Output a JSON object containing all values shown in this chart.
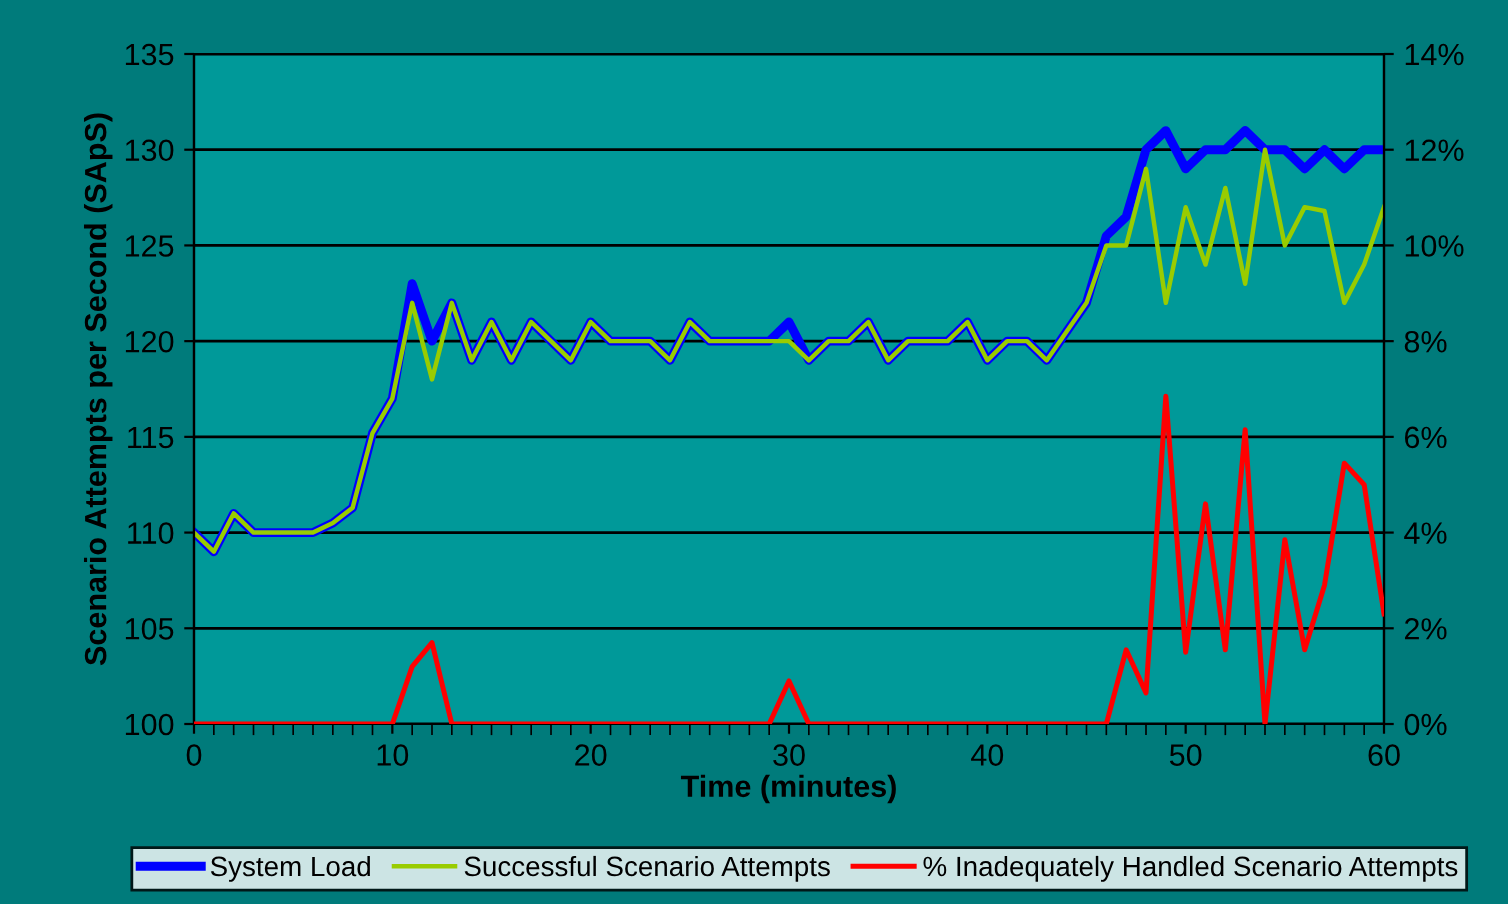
{
  "chart_data": {
    "type": "line",
    "xlabel": "Time (minutes)",
    "ylabel": "Scenario Attempts per Second (SApS)",
    "x": [
      0,
      1,
      2,
      3,
      4,
      5,
      6,
      7,
      8,
      9,
      10,
      11,
      12,
      13,
      14,
      15,
      16,
      17,
      18,
      19,
      20,
      21,
      22,
      23,
      24,
      25,
      26,
      27,
      28,
      29,
      30,
      31,
      32,
      33,
      34,
      35,
      36,
      37,
      38,
      39,
      40,
      41,
      42,
      43,
      44,
      45,
      46,
      47,
      48,
      49,
      50,
      51,
      52,
      53,
      54,
      55,
      56,
      57,
      58,
      59,
      60
    ],
    "series": [
      {
        "name": "System Load",
        "color": "#0000ff",
        "values": [
          110,
          109,
          111,
          110,
          110,
          110,
          110,
          110.5,
          111.3,
          115.2,
          117,
          123,
          120,
          122,
          119,
          121,
          119,
          121,
          120,
          119,
          121,
          120,
          120,
          120,
          119,
          121,
          120,
          120,
          120,
          120,
          121,
          119,
          120,
          120,
          121,
          119,
          120,
          120,
          120,
          121,
          119,
          120,
          120,
          119,
          120.5,
          122,
          125.5,
          126.5,
          130,
          131,
          129,
          130,
          130,
          131,
          130,
          130,
          129,
          130,
          129,
          130,
          130
        ]
      },
      {
        "name": "Successful Scenario Attempts",
        "color": "#99cc00",
        "values": [
          110,
          109,
          111,
          110,
          110,
          110,
          110,
          110.5,
          111.3,
          115.2,
          117,
          122,
          118,
          122,
          119,
          121,
          119,
          121,
          120,
          119,
          121,
          120,
          120,
          120,
          119,
          121,
          120,
          120,
          120,
          120,
          120,
          119,
          120,
          120,
          121,
          119,
          120,
          120,
          120,
          121,
          119,
          120,
          120,
          119,
          120.5,
          122,
          125,
          125,
          129,
          122,
          127,
          124,
          128,
          123,
          130,
          125,
          127,
          126.8,
          122,
          124,
          127
        ]
      },
      {
        "name": "% Inadequately Handled Scenario Attempts",
        "color": "#ff0000",
        "axis": "y2",
        "values": [
          0,
          0,
          0,
          0,
          0,
          0,
          0,
          0,
          0,
          0,
          0,
          1.2,
          1.7,
          0,
          0,
          0,
          0,
          0,
          0,
          0,
          0,
          0,
          0,
          0,
          0,
          0,
          0,
          0,
          0,
          0,
          0.9,
          0,
          0,
          0,
          0,
          0,
          0,
          0,
          0,
          0,
          0,
          0,
          0,
          0,
          0,
          0,
          0,
          1.55,
          0.65,
          6.85,
          1.5,
          4.6,
          1.55,
          6.15,
          0,
          3.85,
          1.55,
          2.9,
          5.45,
          5.0,
          2.3
        ]
      }
    ],
    "xlim": [
      0,
      60
    ],
    "xticks": [
      0,
      10,
      20,
      30,
      40,
      50,
      60
    ],
    "ylim": [
      100,
      135
    ],
    "yticks": [
      100,
      105,
      110,
      115,
      120,
      125,
      130,
      135
    ],
    "y2lim": [
      0,
      14
    ],
    "y2ticks": [
      {
        "value": 0,
        "label": "0%"
      },
      {
        "value": 2,
        "label": "2%"
      },
      {
        "value": 4,
        "label": "4%"
      },
      {
        "value": 6,
        "label": "6%"
      },
      {
        "value": 8,
        "label": "8%"
      },
      {
        "value": 10,
        "label": "10%"
      },
      {
        "value": 12,
        "label": "12%"
      },
      {
        "value": 14,
        "label": "14%"
      }
    ],
    "grid": "y",
    "legend": "bottom",
    "marker": "none",
    "line_style": "solid"
  }
}
